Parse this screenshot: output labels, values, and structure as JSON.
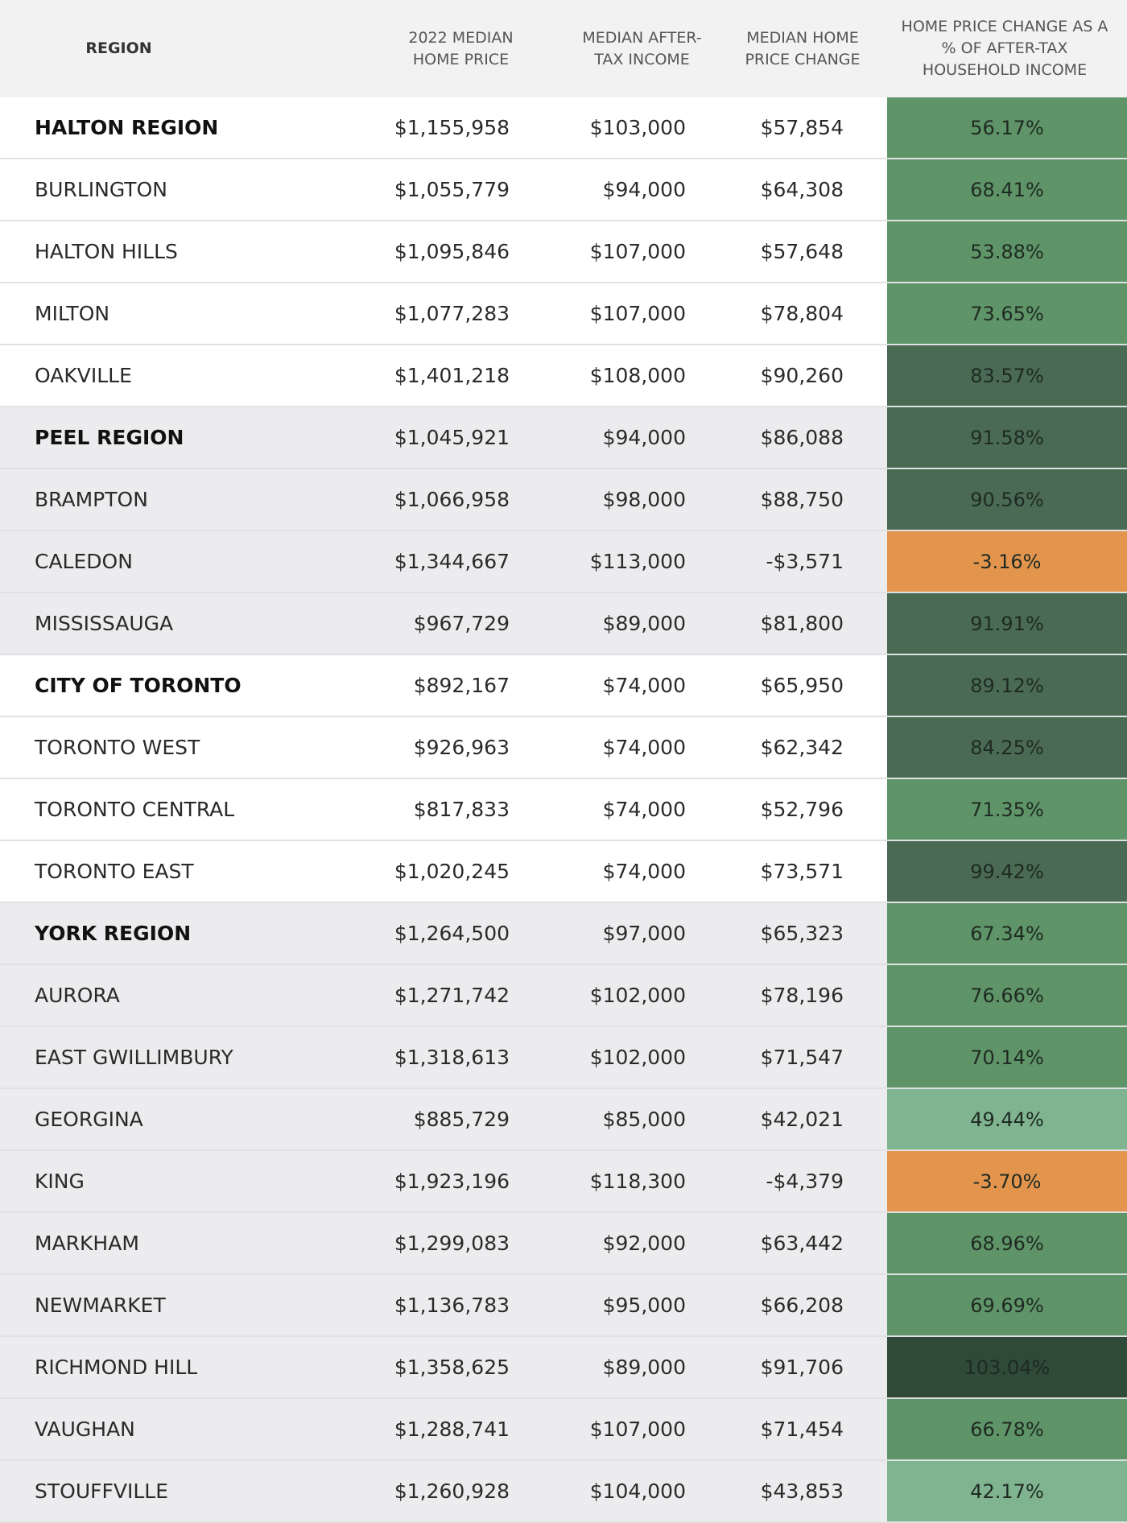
{
  "table": {
    "header": [
      "REGION",
      "2022 MEDIAN HOME PRICE",
      "MEDIAN AFTER-TAX INCOME",
      "MEDIAN HOME PRICE CHANGE",
      "HOME PRICE CHANGE AS A % OF AFTER-TAX HOUSEHOLD INCOME"
    ],
    "rows": [
      {
        "cells": [
          "HALTON REGION",
          "$1,155,958",
          "$103,000",
          "$57,854",
          "56.17%"
        ],
        "color": "#5f9468",
        "bold": true,
        "shaded": false
      },
      {
        "cells": [
          "BURLINGTON",
          "$1,055,779",
          "$94,000",
          "$64,308",
          "68.41%"
        ],
        "color": "#5f9468",
        "bold": false,
        "shaded": false
      },
      {
        "cells": [
          "HALTON HILLS",
          "$1,095,846",
          "$107,000",
          "$57,648",
          "53.88%"
        ],
        "color": "#5f9468",
        "bold": false,
        "shaded": false
      },
      {
        "cells": [
          "MILTON",
          "$1,077,283",
          "$107,000",
          "$78,804",
          "73.65%"
        ],
        "color": "#5f9468",
        "bold": false,
        "shaded": false
      },
      {
        "cells": [
          "OAKVILLE",
          "$1,401,218",
          "$108,000",
          "$90,260",
          "83.57%"
        ],
        "color": "#4a6a54",
        "bold": false,
        "shaded": false
      },
      {
        "cells": [
          "PEEL REGION",
          "$1,045,921",
          "$94,000",
          "$86,088",
          "91.58%"
        ],
        "color": "#4a6a54",
        "bold": true,
        "shaded": true
      },
      {
        "cells": [
          "BRAMPTON",
          "$1,066,958",
          "$98,000",
          "$88,750",
          "90.56%"
        ],
        "color": "#4a6a54",
        "bold": false,
        "shaded": true
      },
      {
        "cells": [
          "CALEDON",
          "$1,344,667",
          "$113,000",
          "-$3,571",
          "-3.16%"
        ],
        "color": "#e3954e",
        "bold": false,
        "shaded": true
      },
      {
        "cells": [
          "MISSISSAUGA",
          "$967,729",
          "$89,000",
          "$81,800",
          "91.91%"
        ],
        "color": "#4a6a54",
        "bold": false,
        "shaded": true
      },
      {
        "cells": [
          "CITY OF TORONTO",
          "$892,167",
          "$74,000",
          "$65,950",
          "89.12%"
        ],
        "color": "#4a6a54",
        "bold": true,
        "shaded": false
      },
      {
        "cells": [
          "TORONTO WEST",
          "$926,963",
          "$74,000",
          "$62,342",
          "84.25%"
        ],
        "color": "#4a6a54",
        "bold": false,
        "shaded": false
      },
      {
        "cells": [
          "TORONTO CENTRAL",
          "$817,833",
          "$74,000",
          "$52,796",
          "71.35%"
        ],
        "color": "#5f9468",
        "bold": false,
        "shaded": false
      },
      {
        "cells": [
          "TORONTO EAST",
          "$1,020,245",
          "$74,000",
          "$73,571",
          "99.42%"
        ],
        "color": "#4a6a54",
        "bold": false,
        "shaded": false
      },
      {
        "cells": [
          "YORK REGION",
          "$1,264,500",
          "$97,000",
          "$65,323",
          "67.34%"
        ],
        "color": "#5f9468",
        "bold": true,
        "shaded": true
      },
      {
        "cells": [
          "AURORA",
          "$1,271,742",
          "$102,000",
          "$78,196",
          "76.66%"
        ],
        "color": "#5f9468",
        "bold": false,
        "shaded": true
      },
      {
        "cells": [
          "EAST GWILLIMBURY",
          "$1,318,613",
          "$102,000",
          "$71,547",
          "70.14%"
        ],
        "color": "#5f9468",
        "bold": false,
        "shaded": true
      },
      {
        "cells": [
          "GEORGINA",
          "$885,729",
          "$85,000",
          "$42,021",
          "49.44%"
        ],
        "color": "#80b390",
        "bold": false,
        "shaded": true
      },
      {
        "cells": [
          "KING",
          "$1,923,196",
          "$118,300",
          "-$4,379",
          "-3.70%"
        ],
        "color": "#e3954e",
        "bold": false,
        "shaded": true
      },
      {
        "cells": [
          "MARKHAM",
          "$1,299,083",
          "$92,000",
          "$63,442",
          "68.96%"
        ],
        "color": "#5f9468",
        "bold": false,
        "shaded": true
      },
      {
        "cells": [
          "NEWMARKET",
          "$1,136,783",
          "$95,000",
          "$66,208",
          "69.69%"
        ],
        "color": "#5f9468",
        "bold": false,
        "shaded": true
      },
      {
        "cells": [
          "RICHMOND HILL",
          "$1,358,625",
          "$89,000",
          "$91,706",
          "103.04%"
        ],
        "color": "#2f4a36",
        "bold": false,
        "shaded": true
      },
      {
        "cells": [
          "VAUGHAN",
          "$1,288,741",
          "$107,000",
          "$71,454",
          "66.78%"
        ],
        "color": "#5f9468",
        "bold": false,
        "shaded": true
      },
      {
        "cells": [
          "STOUFFVILLE",
          "$1,260,928",
          "$104,000",
          "$43,853",
          "42.17%"
        ],
        "color": "#80b390",
        "bold": false,
        "shaded": true
      }
    ]
  }
}
